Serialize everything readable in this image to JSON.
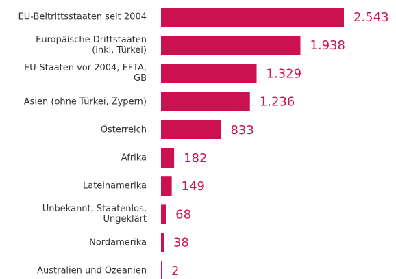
{
  "chart_data": {
    "type": "barh",
    "categories": [
      "EU-Beitrittsstaaten seit 2004",
      "Europäische Drittstaaten (inkl. Türkei)",
      "EU-Staaten vor 2004, EFTA, GB",
      "Asien (ohne Türkei, Zypern)",
      "Österreich",
      "Afrika",
      "Lateinamerika",
      "Unbekannt, Staatenlos, Ungeklärt",
      "Nordamerika",
      "Australien und Ozeanien"
    ],
    "values": [
      2543,
      1938,
      1329,
      1236,
      833,
      182,
      149,
      68,
      38,
      2
    ],
    "value_labels": [
      "2.543",
      "1.938",
      "1.329",
      "1.236",
      "833",
      "182",
      "149",
      "68",
      "38",
      "2"
    ],
    "color": "#cc1151"
  }
}
